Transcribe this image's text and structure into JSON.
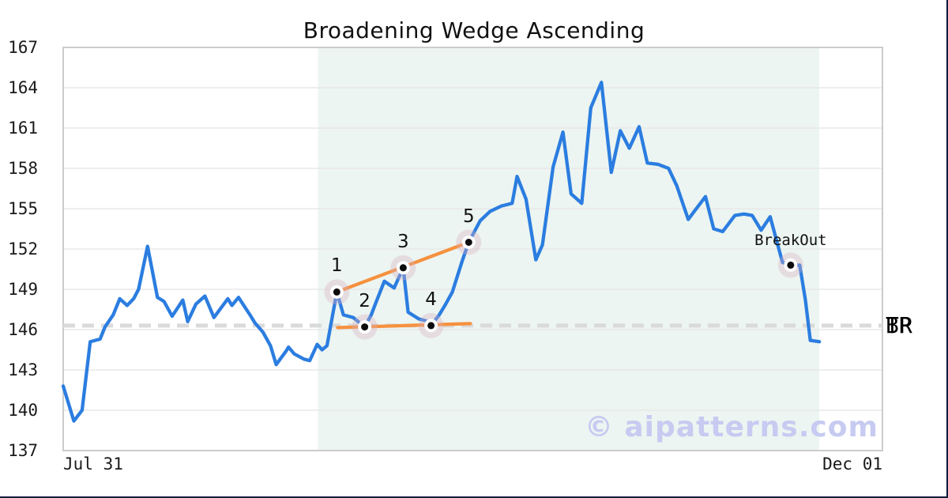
{
  "chart_data": {
    "type": "line",
    "title": "Broadening Wedge Ascending",
    "watermark": "© aipatterns.com",
    "x_axis": {
      "left_label": "Jul 31",
      "right_label": "Dec 01"
    },
    "y_axis": {
      "min": 137,
      "max": 167,
      "ticks": [
        167,
        164,
        161,
        158,
        155,
        152,
        149,
        146,
        143,
        140,
        137
      ]
    },
    "grid": true,
    "legend": "none",
    "series": {
      "name": "price",
      "color": "#2b7de0",
      "points": [
        [
          0.0,
          141.8
        ],
        [
          0.013,
          139.2
        ],
        [
          0.023,
          140.0
        ],
        [
          0.033,
          145.1
        ],
        [
          0.045,
          145.3
        ],
        [
          0.051,
          146.2
        ],
        [
          0.061,
          147.1
        ],
        [
          0.069,
          148.3
        ],
        [
          0.078,
          147.8
        ],
        [
          0.086,
          148.3
        ],
        [
          0.092,
          149.0
        ],
        [
          0.103,
          152.2
        ],
        [
          0.115,
          148.4
        ],
        [
          0.123,
          148.1
        ],
        [
          0.133,
          147.0
        ],
        [
          0.146,
          148.2
        ],
        [
          0.152,
          146.6
        ],
        [
          0.162,
          147.9
        ],
        [
          0.173,
          148.5
        ],
        [
          0.184,
          146.9
        ],
        [
          0.201,
          148.3
        ],
        [
          0.206,
          147.8
        ],
        [
          0.214,
          148.4
        ],
        [
          0.229,
          147.0
        ],
        [
          0.234,
          146.5
        ],
        [
          0.244,
          145.8
        ],
        [
          0.253,
          144.8
        ],
        [
          0.26,
          143.4
        ],
        [
          0.272,
          144.4
        ],
        [
          0.275,
          144.7
        ],
        [
          0.282,
          144.2
        ],
        [
          0.294,
          143.8
        ],
        [
          0.301,
          143.7
        ],
        [
          0.31,
          144.9
        ],
        [
          0.316,
          144.5
        ],
        [
          0.322,
          144.8
        ],
        [
          0.334,
          148.8
        ],
        [
          0.342,
          147.1
        ],
        [
          0.354,
          146.9
        ],
        [
          0.362,
          146.5
        ],
        [
          0.368,
          146.2
        ],
        [
          0.376,
          147.1
        ],
        [
          0.381,
          147.9
        ],
        [
          0.392,
          149.6
        ],
        [
          0.404,
          149.1
        ],
        [
          0.415,
          150.6
        ],
        [
          0.421,
          147.3
        ],
        [
          0.434,
          146.8
        ],
        [
          0.446,
          146.6
        ],
        [
          0.449,
          146.3
        ],
        [
          0.459,
          147.1
        ],
        [
          0.466,
          147.8
        ],
        [
          0.475,
          148.8
        ],
        [
          0.487,
          151.1
        ],
        [
          0.495,
          152.5
        ],
        [
          0.509,
          154.1
        ],
        [
          0.521,
          154.8
        ],
        [
          0.535,
          155.2
        ],
        [
          0.548,
          155.4
        ],
        [
          0.554,
          157.4
        ],
        [
          0.565,
          155.7
        ],
        [
          0.577,
          151.2
        ],
        [
          0.585,
          152.3
        ],
        [
          0.598,
          158.1
        ],
        [
          0.61,
          160.7
        ],
        [
          0.62,
          156.1
        ],
        [
          0.633,
          155.4
        ],
        [
          0.644,
          162.5
        ],
        [
          0.657,
          164.4
        ],
        [
          0.669,
          157.7
        ],
        [
          0.68,
          160.8
        ],
        [
          0.691,
          159.5
        ],
        [
          0.703,
          161.1
        ],
        [
          0.713,
          158.4
        ],
        [
          0.726,
          158.3
        ],
        [
          0.739,
          158.0
        ],
        [
          0.749,
          156.7
        ],
        [
          0.763,
          154.2
        ],
        [
          0.769,
          154.7
        ],
        [
          0.784,
          155.9
        ],
        [
          0.794,
          153.5
        ],
        [
          0.805,
          153.3
        ],
        [
          0.82,
          154.5
        ],
        [
          0.831,
          154.6
        ],
        [
          0.841,
          154.5
        ],
        [
          0.852,
          153.4
        ],
        [
          0.863,
          154.4
        ],
        [
          0.878,
          151.0
        ],
        [
          0.888,
          150.8
        ],
        [
          0.899,
          150.8
        ],
        [
          0.906,
          148.2
        ],
        [
          0.912,
          145.2
        ],
        [
          0.923,
          145.1
        ]
      ]
    },
    "pattern": {
      "name": "Broadening Wedge Ascending",
      "zone": {
        "x_start": 0.311,
        "x_end": 0.923,
        "fill": "#ecf5f1"
      },
      "pivots": [
        {
          "label": "1",
          "x": 0.334,
          "price": 148.8
        },
        {
          "label": "2",
          "x": 0.368,
          "price": 146.2
        },
        {
          "label": "3",
          "x": 0.415,
          "price": 150.6
        },
        {
          "label": "4",
          "x": 0.449,
          "price": 146.3
        },
        {
          "label": "5",
          "x": 0.495,
          "price": 152.5
        }
      ],
      "breakout": {
        "label": "BreakOut",
        "x": 0.888,
        "price": 150.8
      },
      "trendlines": [
        {
          "name": "upper",
          "color": "#f6913e",
          "from": {
            "x": 0.334,
            "price": 148.8
          },
          "to": {
            "x": 0.495,
            "price": 152.5
          }
        },
        {
          "name": "lower",
          "color": "#f6913e",
          "from": {
            "x": 0.335,
            "price": 146.15
          },
          "to": {
            "x": 0.497,
            "price": 146.45
          }
        }
      ],
      "level_line": {
        "price": 146.3,
        "style": "dashed",
        "color": "#dadada",
        "labels": [
          "TP",
          "BR"
        ]
      }
    },
    "style": {
      "background": "#ffffff",
      "frame_color": "#101d3a",
      "grid_color": "#e8e8e8",
      "plot_border_color": "#cccccc",
      "marker_halo": "#dbaec0",
      "marker_halo_opacity": 0.35,
      "marker_ring": "#ffffff",
      "marker_dot": "#0d0d0d",
      "watermark_color": "#c7cbf1"
    }
  }
}
